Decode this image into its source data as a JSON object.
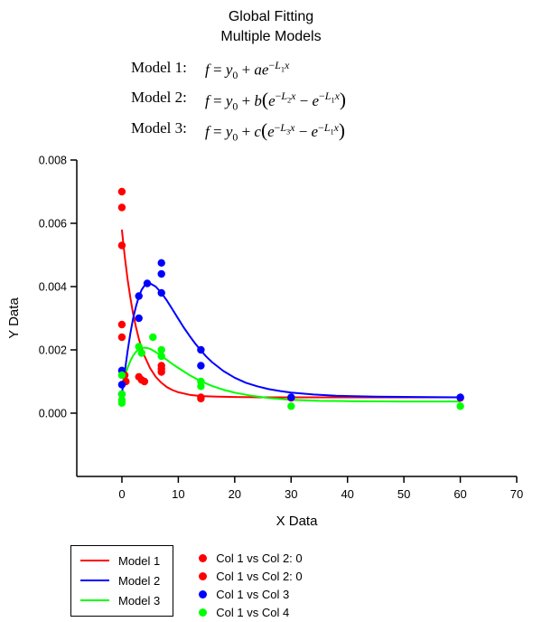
{
  "chart_data": {
    "type": "scatter",
    "title": "Global Fitting",
    "subtitle": "Multiple Models",
    "xlabel": "X Data",
    "ylabel": "Y Data",
    "xlim": [
      -8,
      70
    ],
    "ylim": [
      -0.002,
      0.008
    ],
    "xticks": [
      0,
      10,
      20,
      30,
      40,
      50,
      60,
      70
    ],
    "yticks": [
      0,
      0.002,
      0.004,
      0.006,
      0.008
    ],
    "grid": false,
    "legend_position": "bottom-left",
    "series": [
      {
        "name": "Model 1",
        "type": "line",
        "color": "#ff0000",
        "points": [
          [
            0,
            0.0058
          ],
          [
            0.5,
            0.00495
          ],
          [
            1,
            0.00424
          ],
          [
            1.5,
            0.00365
          ],
          [
            2,
            0.00313
          ],
          [
            2.5,
            0.00271
          ],
          [
            3,
            0.00235
          ],
          [
            3.5,
            0.00206
          ],
          [
            4,
            0.00181
          ],
          [
            5,
            0.00142
          ],
          [
            6,
            0.00115
          ],
          [
            7,
            0.00096
          ],
          [
            8,
            0.00082
          ],
          [
            9,
            0.00073
          ],
          [
            10,
            0.00066
          ],
          [
            12,
            0.00058
          ],
          [
            14,
            0.00054
          ],
          [
            17,
            0.00052
          ],
          [
            20,
            0.00051
          ],
          [
            25,
            0.0005
          ],
          [
            30,
            0.0005
          ],
          [
            40,
            0.0005
          ],
          [
            50,
            0.0005
          ],
          [
            60,
            0.0005
          ]
        ]
      },
      {
        "name": "Model 2",
        "type": "line",
        "color": "#0000ff",
        "points": [
          [
            0,
            0.0006
          ],
          [
            0.5,
            0.0013
          ],
          [
            1,
            0.00195
          ],
          [
            1.5,
            0.00252
          ],
          [
            2,
            0.003
          ],
          [
            2.5,
            0.00338
          ],
          [
            3,
            0.00368
          ],
          [
            3.5,
            0.0039
          ],
          [
            4,
            0.00403
          ],
          [
            4.5,
            0.00409
          ],
          [
            5,
            0.0041
          ],
          [
            6,
            0.004
          ],
          [
            7,
            0.0038
          ],
          [
            8,
            0.00355
          ],
          [
            9,
            0.00327
          ],
          [
            10,
            0.00298
          ],
          [
            11,
            0.0027
          ],
          [
            12,
            0.00244
          ],
          [
            13,
            0.0022
          ],
          [
            14,
            0.00198
          ],
          [
            15,
            0.00178
          ],
          [
            16,
            0.00161
          ],
          [
            18,
            0.00133
          ],
          [
            20,
            0.00112
          ],
          [
            22,
            0.00096
          ],
          [
            24,
            0.00085
          ],
          [
            26,
            0.00076
          ],
          [
            28,
            0.0007
          ],
          [
            30,
            0.00065
          ],
          [
            34,
            0.00059
          ],
          [
            38,
            0.00055
          ],
          [
            45,
            0.00052
          ],
          [
            52,
            0.00051
          ],
          [
            60,
            0.0005
          ]
        ]
      },
      {
        "name": "Model 3",
        "type": "line",
        "color": "#00ff00",
        "points": [
          [
            0,
            0.0008
          ],
          [
            0.5,
            0.00115
          ],
          [
            1,
            0.00143
          ],
          [
            1.5,
            0.00165
          ],
          [
            2,
            0.00182
          ],
          [
            2.5,
            0.00194
          ],
          [
            3,
            0.00202
          ],
          [
            3.5,
            0.00206
          ],
          [
            4,
            0.00207
          ],
          [
            4.5,
            0.00206
          ],
          [
            5,
            0.00203
          ],
          [
            6,
            0.00193
          ],
          [
            7,
            0.00181
          ],
          [
            8,
            0.00168
          ],
          [
            9,
            0.00155
          ],
          [
            10,
            0.00143
          ],
          [
            12,
            0.0012
          ],
          [
            14,
            0.00101
          ],
          [
            16,
            0.00086
          ],
          [
            18,
            0.00074
          ],
          [
            20,
            0.00065
          ],
          [
            23,
            0.00055
          ],
          [
            26,
            0.00048
          ],
          [
            30,
            0.00042
          ],
          [
            35,
            0.00039
          ],
          [
            40,
            0.00038
          ],
          [
            50,
            0.00037
          ],
          [
            60,
            0.00037
          ]
        ]
      },
      {
        "name": "Col 1 vs Col 2: 0",
        "type": "scatter",
        "color": "#ff0000",
        "points": [
          [
            0,
            0.007
          ],
          [
            0,
            0.0065
          ],
          [
            0,
            0.0053
          ],
          [
            0,
            0.0028
          ],
          [
            0,
            0.0024
          ],
          [
            0.5,
            0.0012
          ],
          [
            0.7,
            0.001
          ],
          [
            3,
            0.00115
          ],
          [
            3.5,
            0.00105
          ],
          [
            4,
            0.001
          ],
          [
            7,
            0.0015
          ],
          [
            7,
            0.0014
          ],
          [
            7,
            0.0013
          ],
          [
            14,
            0.0005
          ],
          [
            14,
            0.00046
          ],
          [
            30,
            0.00048
          ],
          [
            60,
            0.00048
          ]
        ]
      },
      {
        "name": "Col 1 vs Col 3",
        "type": "scatter",
        "color": "#0000ff",
        "points": [
          [
            0,
            0.00135
          ],
          [
            0,
            0.0009
          ],
          [
            0,
            0.0006
          ],
          [
            3,
            0.0037
          ],
          [
            3,
            0.003
          ],
          [
            4.5,
            0.0041
          ],
          [
            7,
            0.00475
          ],
          [
            7,
            0.0044
          ],
          [
            7,
            0.0038
          ],
          [
            14,
            0.002
          ],
          [
            14,
            0.0015
          ],
          [
            30,
            0.0005
          ],
          [
            60,
            0.0005
          ]
        ]
      },
      {
        "name": "Col 1 vs Col 4",
        "type": "scatter",
        "color": "#00ff00",
        "points": [
          [
            0,
            0.0012
          ],
          [
            0,
            0.0006
          ],
          [
            0,
            0.00042
          ],
          [
            0,
            0.00032
          ],
          [
            3,
            0.0021
          ],
          [
            3.5,
            0.0019
          ],
          [
            5.5,
            0.0024
          ],
          [
            7,
            0.002
          ],
          [
            7,
            0.0018
          ],
          [
            14,
            0.001
          ],
          [
            14,
            0.00085
          ],
          [
            30,
            0.00022
          ],
          [
            60,
            0.00022
          ]
        ]
      }
    ]
  },
  "models": [
    {
      "label": "Model 1:",
      "tokens": [
        {
          "i": "f"
        },
        {
          "t": " = "
        },
        {
          "i": "y"
        },
        {
          "sub": "0"
        },
        {
          "t": " + "
        },
        {
          "i": "ae"
        },
        {
          "sup": [
            {
              "t": "−"
            },
            {
              "i": "L"
            },
            {
              "sub": "1"
            },
            {
              "i": "x"
            }
          ]
        }
      ]
    },
    {
      "label": "Model 2:",
      "tokens": [
        {
          "i": "f"
        },
        {
          "t": " = "
        },
        {
          "i": "y"
        },
        {
          "sub": "0"
        },
        {
          "t": " + "
        },
        {
          "i": "b"
        },
        {
          "paren": "("
        },
        {
          "i": "e"
        },
        {
          "sup": [
            {
              "t": "−"
            },
            {
              "i": "L"
            },
            {
              "sub": "2"
            },
            {
              "i": "x"
            }
          ]
        },
        {
          "t": " − "
        },
        {
          "i": "e"
        },
        {
          "sup": [
            {
              "t": "−"
            },
            {
              "i": "L"
            },
            {
              "sub": "1"
            },
            {
              "i": "x"
            }
          ]
        },
        {
          "paren": ")"
        }
      ]
    },
    {
      "label": "Model 3:",
      "tokens": [
        {
          "i": "f"
        },
        {
          "t": " = "
        },
        {
          "i": "y"
        },
        {
          "sub": "0"
        },
        {
          "t": " + "
        },
        {
          "i": "c"
        },
        {
          "paren": "("
        },
        {
          "i": "e"
        },
        {
          "sup": [
            {
              "t": "−"
            },
            {
              "i": "L"
            },
            {
              "sub": "3"
            },
            {
              "i": "x"
            }
          ]
        },
        {
          "t": " − "
        },
        {
          "i": "e"
        },
        {
          "sup": [
            {
              "t": "−"
            },
            {
              "i": "L"
            },
            {
              "sub": "1"
            },
            {
              "i": "x"
            }
          ]
        },
        {
          "paren": ")"
        }
      ]
    }
  ],
  "legend": {
    "lines": [
      {
        "label": "Model 1",
        "color": "#ff0000"
      },
      {
        "label": "Model 2",
        "color": "#0000ff"
      },
      {
        "label": "Model 3",
        "color": "#00ff00"
      }
    ],
    "dots": [
      {
        "label": "Col 1 vs Col 2: 0",
        "color": "#ff0000"
      },
      {
        "label": "Col 1 vs Col 2: 0",
        "color": "#ff0000"
      },
      {
        "label": "Col 1 vs Col 3",
        "color": "#0000ff"
      },
      {
        "label": "Col 1 vs Col 4",
        "color": "#00ff00"
      }
    ]
  }
}
